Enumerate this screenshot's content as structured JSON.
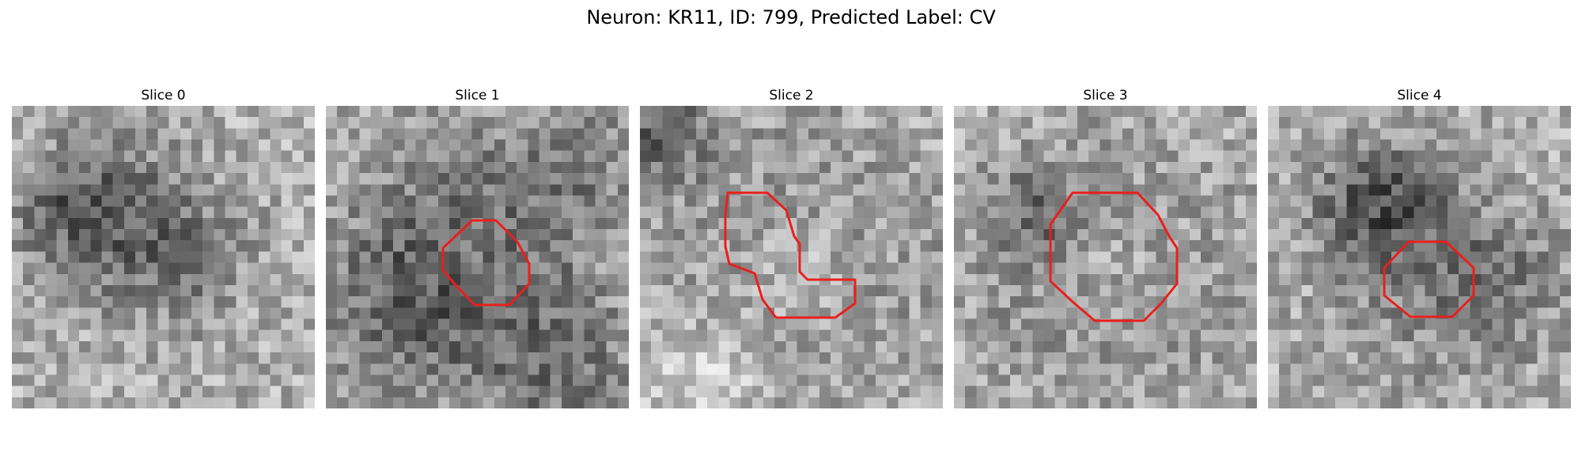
{
  "figure": {
    "title": "Neuron: KR11, ID: 799, Predicted Label: CV"
  },
  "image": {
    "grid_size": 27,
    "colormap": "grayscale",
    "contour_color": "#e8201c"
  },
  "slices": [
    {
      "label": "Slice 0",
      "has_contour": false
    },
    {
      "label": "Slice 1",
      "has_contour": true
    },
    {
      "label": "Slice 2",
      "has_contour": true
    },
    {
      "label": "Slice 3",
      "has_contour": true
    },
    {
      "label": "Slice 4",
      "has_contour": true
    }
  ]
}
